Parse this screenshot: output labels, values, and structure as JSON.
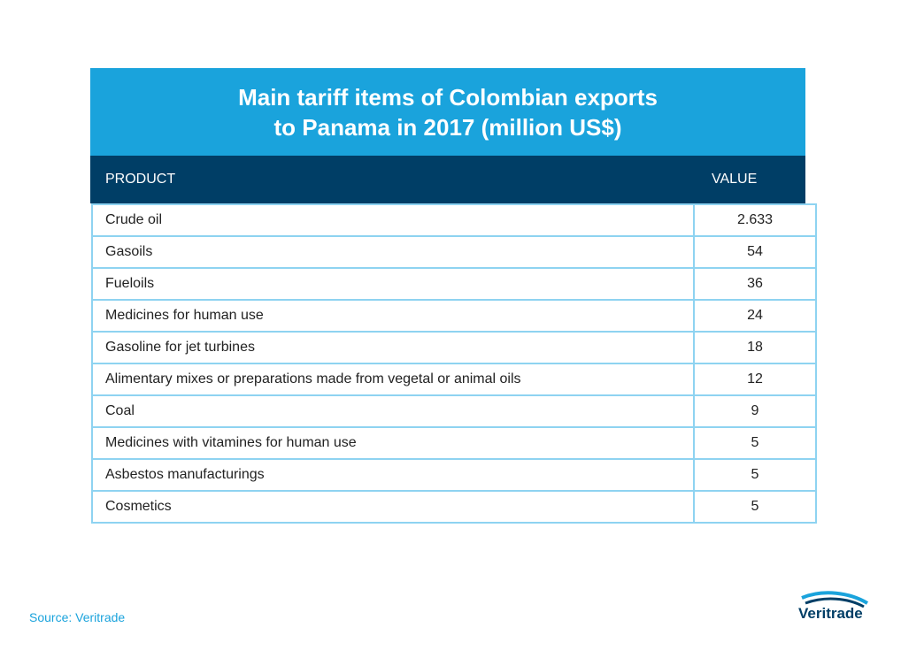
{
  "chart_data": {
    "type": "table",
    "title": "Main tariff items of Colombian exports\nto Panama in 2017 (million US$)",
    "columns": [
      "PRODUCT",
      "VALUE"
    ],
    "rows": [
      {
        "product": "Crude oil",
        "value": "2.633"
      },
      {
        "product": "Gasoils",
        "value": "54"
      },
      {
        "product": "Fueloils",
        "value": "36"
      },
      {
        "product": "Medicines for human use",
        "value": "24"
      },
      {
        "product": "Gasoline for jet turbines",
        "value": "18"
      },
      {
        "product": "Alimentary mixes or preparations made from vegetal or animal oils",
        "value": "12"
      },
      {
        "product": "Coal",
        "value": "9"
      },
      {
        "product": "Medicines with vitamines for human use",
        "value": "5"
      },
      {
        "product": "Asbestos manufacturings",
        "value": "5"
      },
      {
        "product": "Cosmetics",
        "value": "5"
      }
    ]
  },
  "source": "Source: Veritrade",
  "logo": {
    "text": "Veritrade",
    "icon": "veritrade-swoosh-icon"
  },
  "colors": {
    "title_band": "#1aa3dc",
    "header_band": "#003e66",
    "grid": "#8ed3f1",
    "source_text": "#1aa3dc"
  }
}
